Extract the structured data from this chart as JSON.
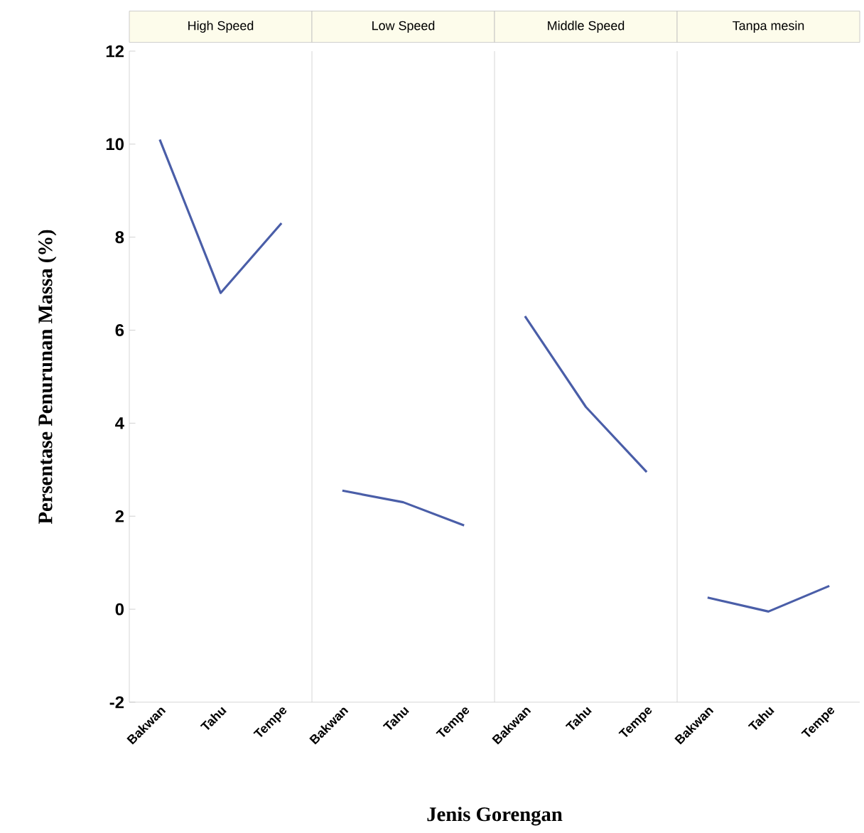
{
  "chart_data": [
    {
      "type": "line",
      "title": "High Speed",
      "ylabel": "Persentase Penurunan Massa (%)",
      "xlabel": "Jenis Gorengan",
      "categories": [
        "Bakwan",
        "Tahu",
        "Tempe"
      ],
      "series": [
        {
          "color": "#4a5ea8",
          "values": [
            10.1,
            6.8,
            8.3
          ]
        }
      ],
      "ylim": [
        -2,
        12
      ],
      "yticks": [
        -2,
        0,
        2,
        4,
        6,
        8,
        10,
        12
      ],
      "grid": false
    },
    {
      "type": "line",
      "title": "Low Speed",
      "categories": [
        "Bakwan",
        "Tahu",
        "Tempe"
      ],
      "series": [
        {
          "color": "#4a5ea8",
          "values": [
            2.55,
            2.3,
            1.8
          ]
        }
      ],
      "ylim": [
        -2,
        12
      ],
      "yticks": [
        -2,
        0,
        2,
        4,
        6,
        8,
        10,
        12
      ],
      "tick_labels": "x"
    },
    {
      "type": "line",
      "title": "Middle Speed",
      "categories": [
        "Bakwan",
        "Tahu",
        "Tempe"
      ],
      "series": [
        {
          "color": "#4a5ea8",
          "values": [
            6.3,
            4.35,
            2.95
          ]
        }
      ],
      "ylim": [
        -2,
        12
      ],
      "yticks": [
        -2,
        0,
        2,
        4,
        6,
        8,
        10,
        12
      ],
      "tick_labels": "x"
    },
    {
      "type": "line",
      "title": "Tanpa mesin",
      "categories": [
        "Bakwan",
        "Tahu",
        "Tempe"
      ],
      "series": [
        {
          "color": "#4a5ea8",
          "values": [
            0.25,
            -0.05,
            0.5
          ]
        }
      ],
      "ylim": [
        -2,
        12
      ],
      "yticks": [
        -2,
        0,
        2,
        4,
        6,
        8,
        10,
        12
      ],
      "tick_labels": "x"
    }
  ]
}
